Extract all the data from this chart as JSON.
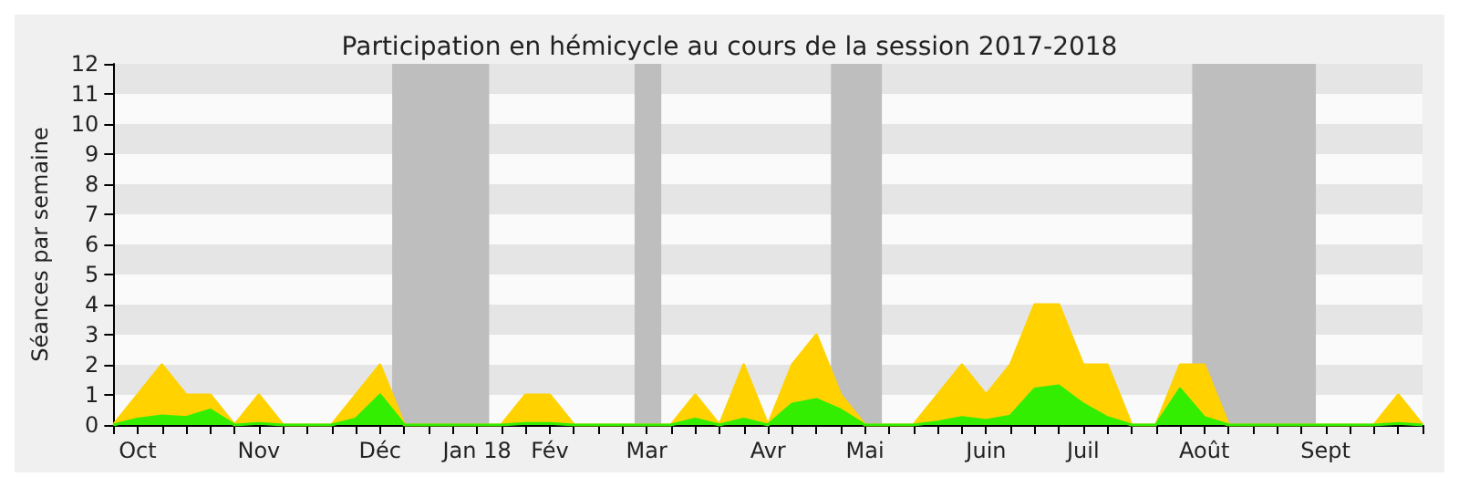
{
  "chart_data": {
    "type": "area",
    "title": "Participation en hémicycle au cours de la session 2017-2018",
    "ylabel": "Séances par semaine",
    "categories": [
      null,
      "Oct",
      null,
      null,
      null,
      null,
      "Nov",
      null,
      null,
      null,
      null,
      "Déc",
      null,
      null,
      null,
      "Jan 18",
      null,
      null,
      "Fév",
      null,
      null,
      null,
      "Mar",
      null,
      null,
      null,
      null,
      "Avr",
      null,
      null,
      null,
      "Mai",
      null,
      null,
      null,
      null,
      "Juin",
      null,
      null,
      null,
      "Juil",
      null,
      null,
      null,
      null,
      "Août",
      null,
      null,
      null,
      null,
      "Sept",
      null,
      null,
      null,
      null
    ],
    "series": [
      {
        "color": "#ffd200",
        "values": [
          0,
          1,
          2,
          1,
          1,
          0,
          1,
          0,
          0,
          0,
          1,
          2,
          0,
          0,
          0,
          0,
          0,
          1,
          1,
          0,
          0,
          0,
          0,
          0,
          1,
          0,
          2,
          0,
          2,
          3,
          1,
          0,
          0,
          0,
          1,
          2,
          1,
          2,
          4,
          4,
          2,
          2,
          0,
          0,
          2,
          2,
          0,
          0,
          0,
          0,
          0,
          0,
          0,
          1,
          0
        ]
      },
      {
        "color": "#33ee00",
        "values": [
          0,
          0.2,
          0.3,
          0.25,
          0.5,
          0,
          0.05,
          0,
          0,
          0,
          0.2,
          1,
          0,
          0,
          0,
          0,
          0,
          0.05,
          0.05,
          0,
          0,
          0,
          0,
          0,
          0.2,
          0,
          0.2,
          0,
          0.7,
          0.85,
          0.5,
          0,
          0,
          0,
          0.1,
          0.25,
          0.15,
          0.3,
          1.2,
          1.3,
          0.7,
          0.25,
          0,
          0,
          1.2,
          0.25,
          0,
          0,
          0,
          0,
          0,
          0,
          0,
          0.05,
          0
        ]
      }
    ],
    "ylim": [
      0,
      12
    ],
    "yticks": [
      0,
      1,
      2,
      3,
      4,
      5,
      6,
      7,
      8,
      9,
      10,
      11,
      12
    ],
    "marker": "none"
  }
}
